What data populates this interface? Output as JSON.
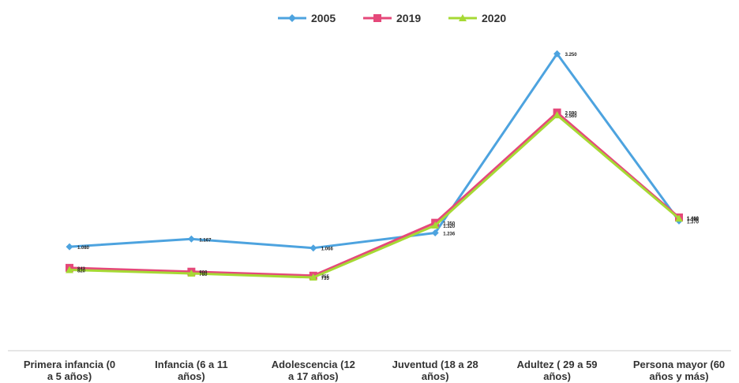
{
  "chart_data": {
    "type": "line",
    "title": "",
    "xlabel": "",
    "ylabel": "",
    "categories": [
      [
        "Primera infancia (0",
        "a 5 años)"
      ],
      [
        "Infancia (6 a 11",
        "años)"
      ],
      [
        "Adolescencia (12",
        "a 17 años)"
      ],
      [
        "Juventud (18 a 28",
        "años)"
      ],
      [
        "Adultez ( 29 a 59",
        "años)"
      ],
      [
        "Persona mayor (60",
        "años y más)"
      ]
    ],
    "series": [
      {
        "name": "2005",
        "color": "#4da3df",
        "marker": "diamond",
        "values": [
          1080,
          1167,
          1066,
          1236,
          3250,
          1370
        ],
        "labels": [
          "1.080",
          "1.167",
          "1.066",
          "1.236",
          "3.250",
          "1.370"
        ]
      },
      {
        "name": "2019",
        "color": "#e5487a",
        "marker": "square",
        "values": [
          843,
          800,
          755,
          1350,
          2590,
          1410
        ],
        "labels": [
          "843",
          "800",
          "755",
          "1.350",
          "2.590",
          "1.410"
        ]
      },
      {
        "name": "2020",
        "color": "#a6d934",
        "marker": "triangle",
        "values": [
          820,
          780,
          735,
          1320,
          2560,
          1398
        ],
        "labels": [
          "820",
          "780",
          "735",
          "1.320",
          "2.560",
          "1.398"
        ]
      }
    ],
    "ylim": [
      0,
      3500
    ],
    "grid": false,
    "legend_position": "top-center",
    "axis_color": "#cccccc"
  }
}
